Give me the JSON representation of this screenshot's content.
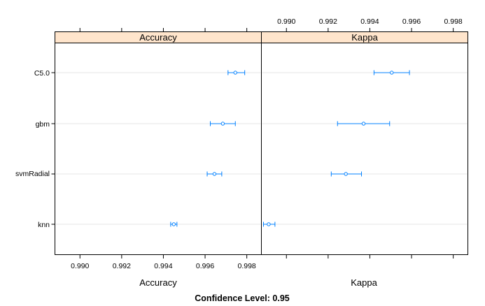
{
  "chart_data": {
    "type": "dotplot",
    "x_ticks": [
      "0.990",
      "0.992",
      "0.994",
      "0.996",
      "0.998"
    ],
    "x_tick_values": [
      0.99,
      0.992,
      0.994,
      0.996,
      0.998
    ],
    "x_range": [
      0.9888,
      0.9987
    ],
    "models": [
      "C5.0",
      "gbm",
      "svmRadial",
      "knn"
    ],
    "footer": "Confidence Level: 0.95",
    "panels": [
      {
        "metric": "Accuracy",
        "xlabel": "Accuracy",
        "points": [
          {
            "model": "C5.0",
            "estimate": 0.99745,
            "lower": 0.9971,
            "upper": 0.9979
          },
          {
            "model": "gbm",
            "estimate": 0.99685,
            "lower": 0.99625,
            "upper": 0.99745
          },
          {
            "model": "svmRadial",
            "estimate": 0.99645,
            "lower": 0.9961,
            "upper": 0.9968
          },
          {
            "model": "knn",
            "estimate": 0.9945,
            "lower": 0.99435,
            "upper": 0.99465
          }
        ]
      },
      {
        "metric": "Kappa",
        "xlabel": "Kappa",
        "points": [
          {
            "model": "C5.0",
            "estimate": 0.99505,
            "lower": 0.9942,
            "upper": 0.9959
          },
          {
            "model": "gbm",
            "estimate": 0.9937,
            "lower": 0.99245,
            "upper": 0.99495
          },
          {
            "model": "svmRadial",
            "estimate": 0.99285,
            "lower": 0.99215,
            "upper": 0.9936
          },
          {
            "model": "knn",
            "estimate": 0.98915,
            "lower": 0.9889,
            "upper": 0.98945
          }
        ]
      }
    ],
    "colors": {
      "point": "#0080ff",
      "strip": "#ffe5cc",
      "gridline": "#e6e6e6",
      "frame": "#000000"
    }
  }
}
